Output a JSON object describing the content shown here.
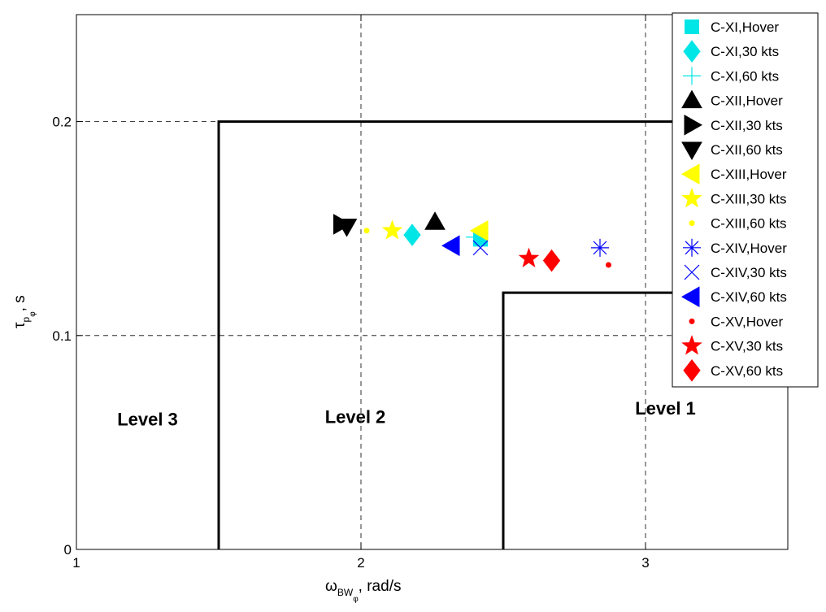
{
  "chart_data": {
    "type": "scatter",
    "xlabel": {
      "main": "ω",
      "sub": "BW",
      "subsub": "φ",
      "rest": ", rad/s"
    },
    "ylabel": {
      "main": "τ",
      "sub": "p",
      "subsub": "φ",
      "rest": ", s"
    },
    "xlim": [
      1,
      3.5
    ],
    "ylim": [
      0,
      0.25
    ],
    "x_ticks": [
      {
        "value": 1,
        "label": "1"
      },
      {
        "value": 2,
        "label": "2"
      },
      {
        "value": 3,
        "label": "3"
      }
    ],
    "y_ticks": [
      {
        "value": 0,
        "label": "0"
      },
      {
        "value": 0.1,
        "label": "0.1"
      },
      {
        "value": 0.2,
        "label": "0.2"
      }
    ],
    "grid": true,
    "legend_position": "top-right",
    "boundaries": [
      {
        "name": "Level 2/3 boundary",
        "points": [
          [
            1.5,
            0
          ],
          [
            1.5,
            0.2
          ],
          [
            3.5,
            0.2
          ]
        ]
      },
      {
        "name": "Level 1/2 boundary",
        "points": [
          [
            2.5,
            0
          ],
          [
            2.5,
            0.12
          ],
          [
            3.5,
            0.12
          ]
        ]
      }
    ],
    "regions": [
      {
        "label": "Level 3",
        "x": 1.25,
        "y": 0.058
      },
      {
        "label": "Level 2",
        "x": 1.98,
        "y": 0.059
      },
      {
        "label": "Level 1",
        "x": 3.07,
        "y": 0.063
      }
    ],
    "series": [
      {
        "name": "C-XI,Hover",
        "marker": "square",
        "color": "#00e5e5",
        "x": 2.42,
        "y": 0.145
      },
      {
        "name": "C-XI,30 kts",
        "marker": "diamond",
        "color": "#00e5e5",
        "x": 2.18,
        "y": 0.147
      },
      {
        "name": "C-XI,60 kts",
        "marker": "plus",
        "color": "#00e5e5",
        "x": 2.4,
        "y": 0.146
      },
      {
        "name": "C-XII,Hover",
        "marker": "triangle-up",
        "color": "#000000",
        "x": 2.26,
        "y": 0.153
      },
      {
        "name": "C-XII,30 kts",
        "marker": "triangle-right",
        "color": "#000000",
        "x": 1.93,
        "y": 0.152
      },
      {
        "name": "C-XII,60 kts",
        "marker": "triangle-down",
        "color": "#000000",
        "x": 1.95,
        "y": 0.151
      },
      {
        "name": "C-XIII,Hover",
        "marker": "triangle-left",
        "color": "#ffff00",
        "x": 2.42,
        "y": 0.149
      },
      {
        "name": "C-XIII,30 kts",
        "marker": "star",
        "color": "#ffff00",
        "x": 2.11,
        "y": 0.149
      },
      {
        "name": "C-XIII,60 kts",
        "marker": "dot",
        "color": "#ffff00",
        "x": 2.02,
        "y": 0.149
      },
      {
        "name": "C-XIV,Hover",
        "marker": "asterisk",
        "color": "#0000ff",
        "x": 2.84,
        "y": 0.141
      },
      {
        "name": "C-XIV,30 kts",
        "marker": "x",
        "color": "#0000ff",
        "x": 2.42,
        "y": 0.141
      },
      {
        "name": "C-XIV,60 kts",
        "marker": "triangle-left",
        "color": "#0000ff",
        "x": 2.32,
        "y": 0.142
      },
      {
        "name": "C-XV,Hover",
        "marker": "dot",
        "color": "#ff0000",
        "x": 2.87,
        "y": 0.133
      },
      {
        "name": "C-XV,30 kts",
        "marker": "star",
        "color": "#ff0000",
        "x": 2.59,
        "y": 0.136
      },
      {
        "name": "C-XV,60 kts",
        "marker": "diamond",
        "color": "#ff0000",
        "x": 2.67,
        "y": 0.135
      }
    ]
  }
}
